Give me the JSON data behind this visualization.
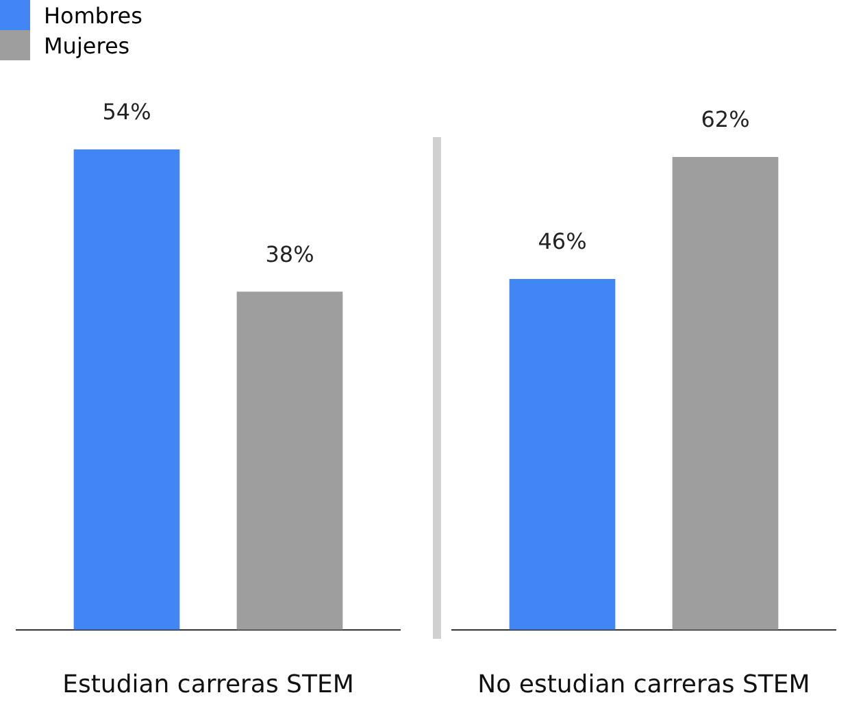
{
  "chart_data": [
    {
      "type": "bar",
      "xlabel": "Estudian carreras STEM",
      "categories": [
        null
      ],
      "grid": false,
      "legend": "top",
      "series": [
        {
          "name": "Hombres",
          "color": "#4285f4",
          "values": [
            54
          ],
          "value_labels": [
            "54%"
          ]
        },
        {
          "name": "Mujeres",
          "color": "#9e9e9e",
          "values": [
            38
          ],
          "value_labels": [
            "38%"
          ]
        }
      ]
    },
    {
      "type": "bar",
      "xlabel": "No estudian carreras STEM",
      "categories": [
        null
      ],
      "grid": false,
      "series": [
        {
          "color": "#4285f4",
          "values": [
            46
          ],
          "value_labels": [
            "46%"
          ]
        },
        {
          "color": "#9e9e9e",
          "values": [
            62
          ],
          "value_labels": [
            "62%"
          ]
        }
      ]
    }
  ]
}
